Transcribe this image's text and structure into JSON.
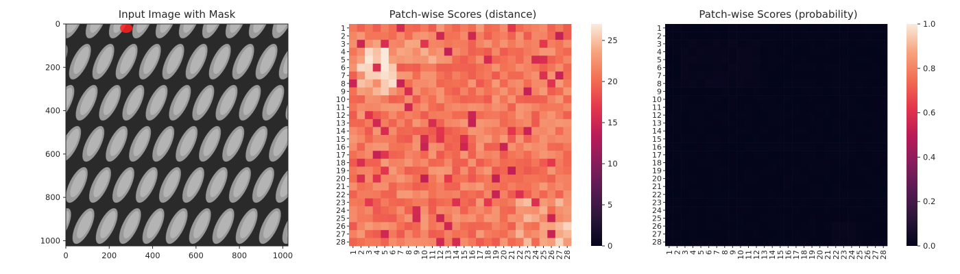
{
  "panels": {
    "image": {
      "title": "Input Image with Mask",
      "xticks": [
        "0",
        "200",
        "400",
        "600",
        "800",
        "1000"
      ],
      "yticks": [
        "0",
        "200",
        "400",
        "600",
        "800",
        "1000"
      ],
      "mask_color": "#ff2020"
    },
    "distance": {
      "title": "Patch-wise Scores (distance)",
      "colorbar_ticks": [
        "0",
        "5",
        "10",
        "15",
        "20",
        "25"
      ]
    },
    "probability": {
      "title": "Patch-wise Scores (probability)",
      "colorbar_ticks": [
        "0.0",
        "0.2",
        "0.4",
        "0.6",
        "0.8",
        "1.0"
      ]
    }
  },
  "chart_data": [
    {
      "type": "image",
      "title": "Input Image with Mask",
      "xlim": [
        0,
        1024
      ],
      "ylim": [
        1024,
        0
      ],
      "xticks": [
        0,
        200,
        400,
        600,
        800,
        1000
      ],
      "yticks": [
        0,
        200,
        400,
        600,
        800,
        1000
      ],
      "mask_region": "top edge near x≈270",
      "colormap": "gray"
    },
    {
      "type": "heatmap",
      "title": "Patch-wise Scores (distance)",
      "rows": 28,
      "cols": 28,
      "row_labels": [
        "1",
        "2",
        "3",
        "4",
        "5",
        "6",
        "7",
        "8",
        "9",
        "10",
        "11",
        "12",
        "13",
        "14",
        "15",
        "16",
        "17",
        "18",
        "19",
        "20",
        "21",
        "22",
        "23",
        "24",
        "25",
        "26",
        "27",
        "28"
      ],
      "col_labels": [
        "1",
        "2",
        "3",
        "4",
        "5",
        "6",
        "7",
        "8",
        "9",
        "10",
        "11",
        "12",
        "13",
        "14",
        "15",
        "16",
        "17",
        "18",
        "19",
        "20",
        "21",
        "22",
        "23",
        "24",
        "25",
        "26",
        "27",
        "28"
      ],
      "vmin": 0,
      "vmax": 27,
      "colorbar_ticks": [
        0,
        5,
        10,
        15,
        20,
        25
      ],
      "colormap": "rocket",
      "typical_range": [
        14,
        27
      ],
      "high_region": "rows 3-8, cols 2-5 (~25-27)",
      "low_spots": "scattered (~14-16)"
    },
    {
      "type": "heatmap",
      "title": "Patch-wise Scores (probability)",
      "rows": 28,
      "cols": 28,
      "row_labels": [
        "1",
        "2",
        "3",
        "4",
        "5",
        "6",
        "7",
        "8",
        "9",
        "10",
        "11",
        "12",
        "13",
        "14",
        "15",
        "16",
        "17",
        "18",
        "19",
        "20",
        "21",
        "22",
        "23",
        "24",
        "25",
        "26",
        "27",
        "28"
      ],
      "col_labels": [
        "1",
        "2",
        "3",
        "4",
        "5",
        "6",
        "7",
        "8",
        "9",
        "10",
        "11",
        "12",
        "13",
        "14",
        "15",
        "16",
        "17",
        "18",
        "19",
        "20",
        "21",
        "22",
        "23",
        "24",
        "25",
        "26",
        "27",
        "28"
      ],
      "vmin": 0.0,
      "vmax": 1.0,
      "colorbar_ticks": [
        0.0,
        0.2,
        0.4,
        0.6,
        0.8,
        1.0
      ],
      "colormap": "rocket",
      "typical_range": [
        0.0,
        0.02
      ]
    }
  ]
}
